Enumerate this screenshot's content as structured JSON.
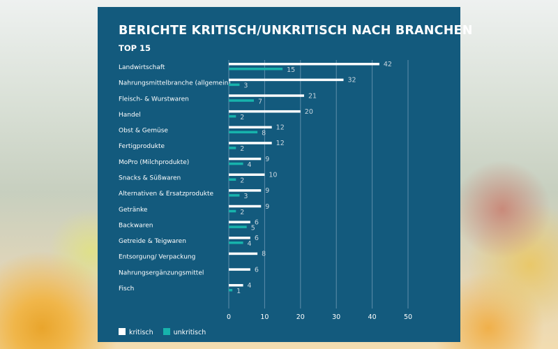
{
  "chart_data": {
    "type": "bar",
    "orientation": "horizontal",
    "title": "BERICHTE KRITISCH/UNKRITISCH NACH BRANCHEN",
    "subtitle": "TOP 15",
    "categories": [
      "Landwirtschaft",
      "Nahrungsmittelbranche (allgemein)",
      "Fleisch- & Wurstwaren",
      "Handel",
      "Obst & Gemüse",
      "Fertigprodukte",
      "MoPro (Milchprodukte)",
      "Snacks & Süßwaren",
      "Alternativen & Ersatzprodukte",
      "Getränke",
      "Backwaren",
      "Getreide & Teigwaren",
      "Entsorgung/ Verpackung",
      "Nahrungsergänzungsmittel",
      "Fisch"
    ],
    "series": [
      {
        "name": "kritisch",
        "color": "#ffffff",
        "values": [
          42,
          32,
          21,
          20,
          12,
          12,
          9,
          10,
          9,
          9,
          6,
          6,
          8,
          6,
          4
        ]
      },
      {
        "name": "unkritisch",
        "color": "#17b3ac",
        "values": [
          15,
          3,
          7,
          2,
          8,
          2,
          4,
          2,
          3,
          2,
          5,
          4,
          null,
          null,
          1
        ]
      }
    ],
    "xlim": [
      0,
      50
    ],
    "xticks": [
      "0",
      "10",
      "20",
      "30",
      "40",
      "50"
    ],
    "grid": true,
    "legend_position": "bottom-left",
    "panel_color": "#135a7d"
  }
}
